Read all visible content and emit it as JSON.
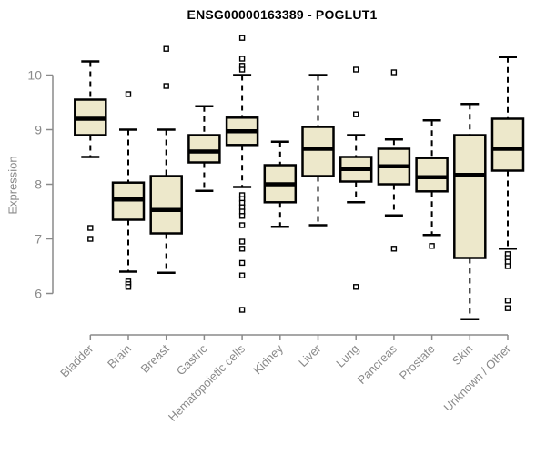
{
  "title": "ENSG00000163389 - POGLUT1",
  "colors": {
    "box_fill": "#EDE8CB",
    "box_stroke": "#000000",
    "median_color": "#000000",
    "whisker_color": "#000000",
    "outlier_stroke": "#000000",
    "outlier_fill": "#ffffff",
    "axis_color": "#8a8a8a",
    "tick_label_color": "#8a8a8a",
    "title_color": "#000000"
  },
  "chart_data": {
    "type": "boxplot",
    "title": "ENSG00000163389 - POGLUT1",
    "xlabel": "",
    "ylabel": "Expression",
    "ylim": [
      5.3,
      10.8
    ],
    "yticks": [
      6,
      7,
      8,
      9,
      10
    ],
    "grid": false,
    "legend": "none",
    "categories": [
      "Bladder",
      "Brain",
      "Breast",
      "Gastric",
      "Hematopoietic cells",
      "Kidney",
      "Liver",
      "Lung",
      "Pancreas",
      "Prostate",
      "Skin",
      "Unknown / Other"
    ],
    "series": [
      {
        "name": "Bladder",
        "whisker_low": 8.5,
        "q1": 8.9,
        "median": 9.2,
        "q3": 9.55,
        "whisker_high": 10.25,
        "outliers": [
          7.2,
          7.0
        ]
      },
      {
        "name": "Brain",
        "whisker_low": 6.4,
        "q1": 7.35,
        "median": 7.72,
        "q3": 8.03,
        "whisker_high": 9.0,
        "outliers": [
          9.65,
          6.22,
          6.17,
          6.12
        ]
      },
      {
        "name": "Breast",
        "whisker_low": 6.38,
        "q1": 7.1,
        "median": 7.53,
        "q3": 8.15,
        "whisker_high": 9.0,
        "outliers": [
          10.48,
          9.8
        ]
      },
      {
        "name": "Gastric",
        "whisker_low": 7.88,
        "q1": 8.4,
        "median": 8.6,
        "q3": 8.9,
        "whisker_high": 9.43,
        "outliers": []
      },
      {
        "name": "Hematopoietic cells",
        "whisker_low": 7.95,
        "q1": 8.72,
        "median": 8.97,
        "q3": 9.22,
        "whisker_high": 10.0,
        "outliers": [
          10.68,
          10.3,
          10.17,
          10.1,
          7.8,
          7.73,
          7.66,
          7.58,
          7.5,
          7.42,
          7.25,
          6.95,
          6.82,
          6.56,
          6.33,
          5.7
        ]
      },
      {
        "name": "Kidney",
        "whisker_low": 7.22,
        "q1": 7.67,
        "median": 8.0,
        "q3": 8.35,
        "whisker_high": 8.78,
        "outliers": []
      },
      {
        "name": "Liver",
        "whisker_low": 7.25,
        "q1": 8.15,
        "median": 8.65,
        "q3": 9.05,
        "whisker_high": 10.0,
        "outliers": []
      },
      {
        "name": "Lung",
        "whisker_low": 7.67,
        "q1": 8.05,
        "median": 8.28,
        "q3": 8.5,
        "whisker_high": 8.9,
        "outliers": [
          10.1,
          9.28,
          6.12
        ]
      },
      {
        "name": "Pancreas",
        "whisker_low": 7.43,
        "q1": 8.0,
        "median": 8.33,
        "q3": 8.65,
        "whisker_high": 8.82,
        "outliers": [
          10.05,
          6.82
        ]
      },
      {
        "name": "Prostate",
        "whisker_low": 7.07,
        "q1": 7.87,
        "median": 8.13,
        "q3": 8.48,
        "whisker_high": 9.17,
        "outliers": [
          6.87
        ]
      },
      {
        "name": "Skin",
        "whisker_low": 5.53,
        "q1": 6.65,
        "median": 8.17,
        "q3": 8.9,
        "whisker_high": 9.47,
        "outliers": []
      },
      {
        "name": "Unknown / Other",
        "whisker_low": 6.82,
        "q1": 8.25,
        "median": 8.65,
        "q3": 9.2,
        "whisker_high": 10.33,
        "outliers": [
          6.72,
          6.65,
          6.58,
          6.5,
          5.87,
          5.73
        ]
      }
    ]
  }
}
